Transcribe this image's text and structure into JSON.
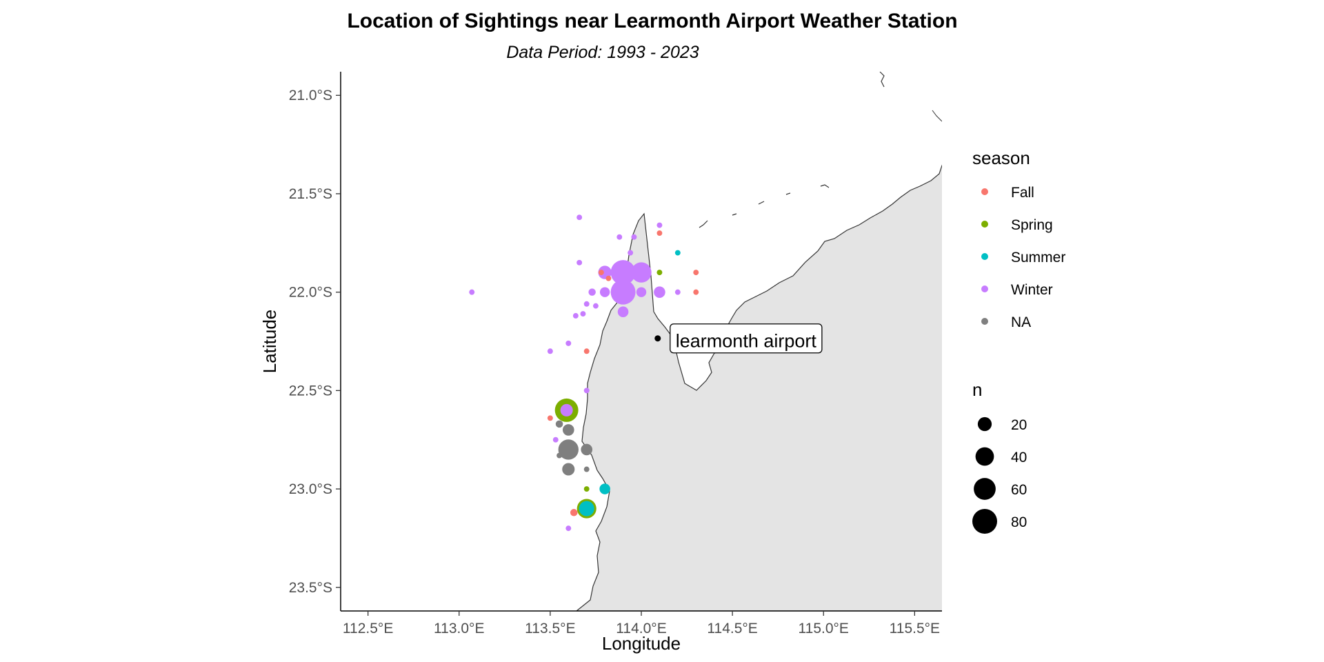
{
  "chart_data": {
    "type": "scatter",
    "title": "Location of Sightings near Learmonth Airport Weather Station",
    "subtitle": "Data Period: 1993 - 2023",
    "xlabel": "Longitude",
    "ylabel": "Latitude",
    "xlim": [
      112.35,
      115.65
    ],
    "ylim": [
      -23.62,
      -20.88
    ],
    "x_ticks": [
      {
        "value": 112.5,
        "label": "112.5°E"
      },
      {
        "value": 113.0,
        "label": "113.0°E"
      },
      {
        "value": 113.5,
        "label": "113.5°E"
      },
      {
        "value": 114.0,
        "label": "114.0°E"
      },
      {
        "value": 114.5,
        "label": "114.5°E"
      },
      {
        "value": 115.0,
        "label": "115.0°E"
      },
      {
        "value": 115.5,
        "label": "115.5°E"
      }
    ],
    "y_ticks": [
      {
        "value": -21.0,
        "label": "21.0°S"
      },
      {
        "value": -21.5,
        "label": "21.5°S"
      },
      {
        "value": -22.0,
        "label": "22.0°S"
      },
      {
        "value": -22.5,
        "label": "22.5°S"
      },
      {
        "value": -23.0,
        "label": "23.0°S"
      },
      {
        "value": -23.5,
        "label": "23.5°S"
      }
    ],
    "grid": false,
    "legend_placement": "right",
    "colors": {
      "Fall": "#F8766D",
      "Spring": "#7CAE00",
      "Summer": "#00BFC4",
      "Winter": "#C77CFF",
      "NA": "#7F7F7F",
      "land": "#e4e4e4",
      "coastline": "#333333"
    },
    "color_legend": {
      "title": "season",
      "entries": [
        "Fall",
        "Spring",
        "Summer",
        "Winter",
        "NA"
      ]
    },
    "size_legend": {
      "title": "n",
      "entries": [
        {
          "value": 20,
          "label": "20"
        },
        {
          "value": 40,
          "label": "40"
        },
        {
          "value": 60,
          "label": "60"
        },
        {
          "value": 80,
          "label": "80"
        }
      ]
    },
    "annotation": {
      "label": "learmonth airport",
      "lon": 114.09,
      "lat": -22.235
    },
    "points": [
      {
        "lon": 113.59,
        "lat": -22.6,
        "season": "Spring",
        "n": 70
      },
      {
        "lon": 113.7,
        "lat": -23.1,
        "season": "Spring",
        "n": 45
      },
      {
        "lon": 113.7,
        "lat": -23.1,
        "season": "Summer",
        "n": 25
      },
      {
        "lon": 113.8,
        "lat": -23.0,
        "season": "Summer",
        "n": 10
      },
      {
        "lon": 114.2,
        "lat": -21.8,
        "season": "Summer",
        "n": 1
      },
      {
        "lon": 113.9,
        "lat": -21.9,
        "season": "Winter",
        "n": 80
      },
      {
        "lon": 113.9,
        "lat": -22.0,
        "season": "Winter",
        "n": 80
      },
      {
        "lon": 114.0,
        "lat": -21.9,
        "season": "Winter",
        "n": 50
      },
      {
        "lon": 113.8,
        "lat": -21.9,
        "season": "Winter",
        "n": 18
      },
      {
        "lon": 113.8,
        "lat": -22.0,
        "season": "Winter",
        "n": 8
      },
      {
        "lon": 114.0,
        "lat": -22.0,
        "season": "Winter",
        "n": 8
      },
      {
        "lon": 114.1,
        "lat": -22.0,
        "season": "Winter",
        "n": 12
      },
      {
        "lon": 113.9,
        "lat": -22.1,
        "season": "Winter",
        "n": 10
      },
      {
        "lon": 113.59,
        "lat": -22.6,
        "season": "Winter",
        "n": 15
      },
      {
        "lon": 113.07,
        "lat": -22.0,
        "season": "Winter",
        "n": 1
      },
      {
        "lon": 113.66,
        "lat": -21.62,
        "season": "Winter",
        "n": 1
      },
      {
        "lon": 113.88,
        "lat": -21.72,
        "season": "Winter",
        "n": 1
      },
      {
        "lon": 113.96,
        "lat": -21.72,
        "season": "Winter",
        "n": 1
      },
      {
        "lon": 114.1,
        "lat": -21.66,
        "season": "Winter",
        "n": 1
      },
      {
        "lon": 113.94,
        "lat": -21.8,
        "season": "Winter",
        "n": 1
      },
      {
        "lon": 113.66,
        "lat": -21.85,
        "season": "Winter",
        "n": 1
      },
      {
        "lon": 113.73,
        "lat": -22.0,
        "season": "Winter",
        "n": 3
      },
      {
        "lon": 113.7,
        "lat": -22.06,
        "season": "Winter",
        "n": 1
      },
      {
        "lon": 113.75,
        "lat": -22.07,
        "season": "Winter",
        "n": 1
      },
      {
        "lon": 113.68,
        "lat": -22.11,
        "season": "Winter",
        "n": 1
      },
      {
        "lon": 113.64,
        "lat": -22.12,
        "season": "Winter",
        "n": 1
      },
      {
        "lon": 113.6,
        "lat": -22.26,
        "season": "Winter",
        "n": 1
      },
      {
        "lon": 113.5,
        "lat": -22.3,
        "season": "Winter",
        "n": 1
      },
      {
        "lon": 113.7,
        "lat": -22.5,
        "season": "Winter",
        "n": 1
      },
      {
        "lon": 113.53,
        "lat": -22.75,
        "season": "Winter",
        "n": 1
      },
      {
        "lon": 113.6,
        "lat": -23.2,
        "season": "Winter",
        "n": 1
      },
      {
        "lon": 114.2,
        "lat": -22.0,
        "season": "Winter",
        "n": 1
      },
      {
        "lon": 114.1,
        "lat": -21.7,
        "season": "Fall",
        "n": 1
      },
      {
        "lon": 113.78,
        "lat": -21.9,
        "season": "Fall",
        "n": 1
      },
      {
        "lon": 113.82,
        "lat": -21.93,
        "season": "Fall",
        "n": 1
      },
      {
        "lon": 114.3,
        "lat": -21.9,
        "season": "Fall",
        "n": 1
      },
      {
        "lon": 114.3,
        "lat": -22.0,
        "season": "Fall",
        "n": 1
      },
      {
        "lon": 113.7,
        "lat": -22.3,
        "season": "Fall",
        "n": 1
      },
      {
        "lon": 113.5,
        "lat": -22.64,
        "season": "Fall",
        "n": 1
      },
      {
        "lon": 113.63,
        "lat": -23.12,
        "season": "Fall",
        "n": 3
      },
      {
        "lon": 114.1,
        "lat": -21.9,
        "season": "Spring",
        "n": 1
      },
      {
        "lon": 113.7,
        "lat": -23.0,
        "season": "Spring",
        "n": 1
      },
      {
        "lon": 113.6,
        "lat": -22.8,
        "season": "NA",
        "n": 50
      },
      {
        "lon": 113.6,
        "lat": -22.9,
        "season": "NA",
        "n": 15
      },
      {
        "lon": 113.6,
        "lat": -22.7,
        "season": "NA",
        "n": 12
      },
      {
        "lon": 113.7,
        "lat": -22.8,
        "season": "NA",
        "n": 12
      },
      {
        "lon": 113.55,
        "lat": -22.67,
        "season": "NA",
        "n": 3
      },
      {
        "lon": 113.55,
        "lat": -22.83,
        "season": "NA",
        "n": 1
      },
      {
        "lon": 113.7,
        "lat": -22.9,
        "season": "NA",
        "n": 1
      }
    ]
  }
}
